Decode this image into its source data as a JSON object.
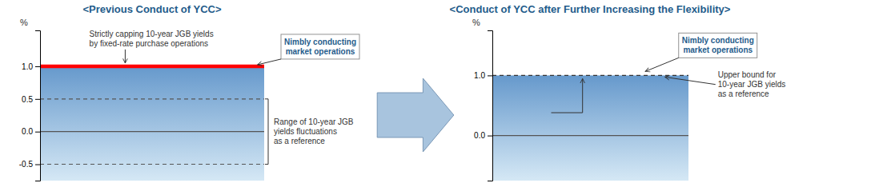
{
  "chart_data": {
    "type": "panels",
    "title_color": "#1f5c8b",
    "background": "#ffffff",
    "arrow": {
      "colors": [
        "#a8c4de",
        "#7090b0"
      ]
    },
    "panels": [
      {
        "type": "band",
        "title": "<Previous Conduct of YCC>",
        "y_label": "%",
        "ylim": [
          -0.75,
          1.55
        ],
        "yticks": [
          -0.5,
          {
            "value": 0.0,
            "label": "0.0"
          },
          0.5,
          {
            "value": 1.0,
            "label": "1.0"
          }
        ],
        "fill": {
          "from": -0.75,
          "to": 1.0,
          "colors": [
            "#6699cc",
            "#d5e8f5"
          ]
        },
        "lines": [
          {
            "value": 1.0,
            "color": "#ff0000",
            "line_style": "thick"
          },
          {
            "value": 0.0,
            "color": "#555555",
            "line_style": "solid"
          },
          {
            "value": 0.5,
            "color": "#555555",
            "line_style": "dashed"
          },
          {
            "value": -0.5,
            "color": "#555555",
            "line_style": "dashed"
          }
        ],
        "annotations": [
          {
            "text": "Strictly capping 10-year JGB yields\nby fixed-rate purchase operations"
          },
          {
            "text": "Nimbly conducting\nmarket operations",
            "color": "#1f5c8b"
          },
          {
            "text": "Range of 10-year JGB\nyields fluctuations\nas a reference"
          }
        ]
      },
      {
        "type": "band",
        "title": "<Conduct of YCC after Further Increasing the Flexibility>",
        "y_label": "%",
        "ylim": [
          -0.75,
          1.75
        ],
        "yticks": [
          {
            "value": 0.0,
            "label": "0.0"
          },
          {
            "value": 1.0,
            "label": "1.0"
          }
        ],
        "fill": {
          "from": -0.75,
          "to": 1.0,
          "colors": [
            "#6699cc",
            "#d5e8f5"
          ]
        },
        "lines": [
          {
            "value": 1.0,
            "color": "#333333",
            "line_style": "dashed"
          },
          {
            "value": 0.0,
            "color": "#555555",
            "line_style": "solid"
          }
        ],
        "annotations": [
          {
            "text": "Nimbly conducting\nmarket operations",
            "color": "#1f5c8b"
          },
          {
            "text": "Upper bound for\n10-year JGB yields\nas a reference"
          }
        ]
      }
    ]
  }
}
